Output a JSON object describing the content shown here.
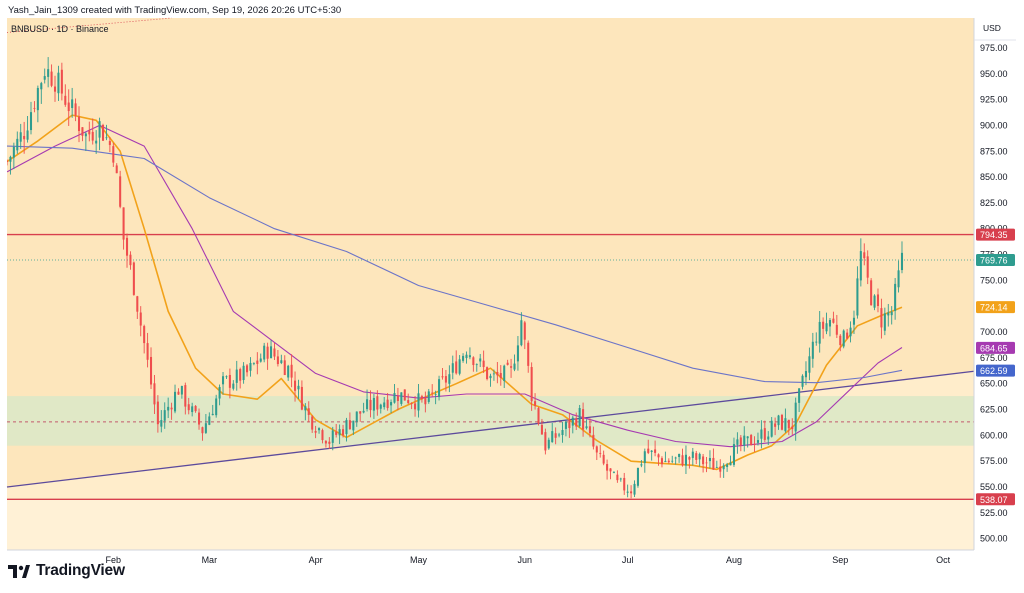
{
  "header": {
    "attribution": "Yash_Jain_1309 created with TradingView.com, Sep 19, 2026 20:26 UTC+5:30",
    "symbol": "BNBUSD · 1D · Binance",
    "currency": "USD"
  },
  "logo": {
    "text": "TradingView",
    "icon": "tradingview-logo-icon"
  },
  "colors": {
    "background_upper": "#fde6bc",
    "background_lower": "#fff1d6",
    "band": "#dde8c6",
    "up_candle": "#2e9c8f",
    "down_candle": "#ef4d4d",
    "ema_short": "#f2a21a",
    "ma_mid": "#a63ab1",
    "ma_long": "#6b74c8",
    "horizontal_line": "#d83f4d",
    "trendline": "#5c4a9c"
  },
  "chart_data": {
    "type": "candlestick",
    "x_axis": {
      "start": "2026-01-01",
      "end": "2026-10-10",
      "ticks": [
        {
          "label": "Feb",
          "date": "2026-02-01"
        },
        {
          "label": "Mar",
          "date": "2026-03-01"
        },
        {
          "label": "Apr",
          "date": "2026-04-01"
        },
        {
          "label": "May",
          "date": "2026-05-01"
        },
        {
          "label": "Jun",
          "date": "2026-06-01"
        },
        {
          "label": "Jul",
          "date": "2026-07-01"
        },
        {
          "label": "Aug",
          "date": "2026-08-01"
        },
        {
          "label": "Sep",
          "date": "2026-09-01"
        },
        {
          "label": "Oct",
          "date": "2026-10-01"
        }
      ]
    },
    "y_axis": {
      "min": 489,
      "max": 1004,
      "ticks": [
        975,
        950,
        925,
        900,
        875,
        850,
        825,
        800,
        775,
        750,
        725,
        700,
        675,
        650,
        625,
        600,
        575,
        550,
        525,
        500
      ]
    },
    "price_labels": [
      {
        "value": 794.35,
        "label": "794.35",
        "color": "#d83f4d"
      },
      {
        "value": 769.76,
        "label": "769.76",
        "color": "#2e9c8f"
      },
      {
        "value": 724.14,
        "label": "724.14",
        "color": "#f2a21a"
      },
      {
        "value": 684.65,
        "label": "684.65",
        "color": "#a63ab1"
      },
      {
        "value": 662.59,
        "label": "662.59",
        "color": "#4466cc"
      },
      {
        "value": 538.07,
        "label": "538.07",
        "color": "#d83f4d"
      }
    ],
    "horizontal_lines": [
      794.35,
      538.07
    ],
    "last_price_line": 769.76,
    "shaded_zone": {
      "top": 638,
      "bottom": 590,
      "mid": 613
    },
    "trendline": {
      "start": {
        "date": "2026-01-01",
        "price": 550
      },
      "end": {
        "date": "2026-10-10",
        "price": 662
      }
    },
    "dotted_line": {
      "start": {
        "date": "2026-01-01",
        "price": 990
      },
      "end": {
        "date": "2026-02-18",
        "price": 1004
      }
    },
    "moving_averages": [
      {
        "color": "#f2a21a",
        "points": [
          [
            "2026-01-01",
            865
          ],
          [
            "2026-01-10",
            885
          ],
          [
            "2026-01-20",
            910
          ],
          [
            "2026-01-27",
            905
          ],
          [
            "2026-02-03",
            875
          ],
          [
            "2026-02-10",
            800
          ],
          [
            "2026-02-17",
            720
          ],
          [
            "2026-02-25",
            665
          ],
          [
            "2026-03-05",
            640
          ],
          [
            "2026-03-15",
            635
          ],
          [
            "2026-03-22",
            655
          ],
          [
            "2026-04-01",
            615
          ],
          [
            "2026-04-10",
            598
          ],
          [
            "2026-04-25",
            625
          ],
          [
            "2026-05-05",
            640
          ],
          [
            "2026-05-12",
            650
          ],
          [
            "2026-05-22",
            665
          ],
          [
            "2026-06-03",
            630
          ],
          [
            "2026-06-12",
            620
          ],
          [
            "2026-06-22",
            595
          ],
          [
            "2026-07-02",
            575
          ],
          [
            "2026-07-10",
            573
          ],
          [
            "2026-07-20",
            571
          ],
          [
            "2026-07-27",
            567
          ],
          [
            "2026-08-05",
            581
          ],
          [
            "2026-08-12",
            590
          ],
          [
            "2026-08-19",
            611
          ],
          [
            "2026-08-28",
            668
          ],
          [
            "2026-09-06",
            706
          ],
          [
            "2026-09-13",
            716
          ],
          [
            "2026-09-19",
            724
          ]
        ]
      },
      {
        "color": "#a63ab1",
        "points": [
          [
            "2026-01-01",
            855
          ],
          [
            "2026-01-15",
            880
          ],
          [
            "2026-01-28",
            900
          ],
          [
            "2026-02-10",
            880
          ],
          [
            "2026-02-24",
            800
          ],
          [
            "2026-03-08",
            720
          ],
          [
            "2026-03-20",
            690
          ],
          [
            "2026-04-01",
            660
          ],
          [
            "2026-04-15",
            642
          ],
          [
            "2026-05-01",
            636
          ],
          [
            "2026-05-15",
            640
          ],
          [
            "2026-06-01",
            640
          ],
          [
            "2026-06-15",
            620
          ],
          [
            "2026-07-01",
            605
          ],
          [
            "2026-07-15",
            594
          ],
          [
            "2026-07-31",
            589
          ],
          [
            "2026-08-15",
            594
          ],
          [
            "2026-08-25",
            613
          ],
          [
            "2026-09-05",
            648
          ],
          [
            "2026-09-12",
            670
          ],
          [
            "2026-09-19",
            685
          ]
        ]
      },
      {
        "color": "#6b74c8",
        "points": [
          [
            "2026-01-01",
            880
          ],
          [
            "2026-01-20",
            878
          ],
          [
            "2026-02-10",
            868
          ],
          [
            "2026-03-01",
            830
          ],
          [
            "2026-03-20",
            800
          ],
          [
            "2026-04-10",
            778
          ],
          [
            "2026-05-01",
            745
          ],
          [
            "2026-05-20",
            727
          ],
          [
            "2026-06-10",
            707
          ],
          [
            "2026-07-01",
            685
          ],
          [
            "2026-07-20",
            665
          ],
          [
            "2026-08-10",
            652
          ],
          [
            "2026-08-25",
            651
          ],
          [
            "2026-09-08",
            656
          ],
          [
            "2026-09-19",
            663
          ]
        ]
      }
    ],
    "candles_anchors": [
      [
        "2026-01-01",
        865
      ],
      [
        "2026-01-06",
        895
      ],
      [
        "2026-01-12",
        955
      ],
      [
        "2026-01-15",
        945
      ],
      [
        "2026-01-19",
        920
      ],
      [
        "2026-01-24",
        890
      ],
      [
        "2026-01-28",
        900
      ],
      [
        "2026-02-01",
        875
      ],
      [
        "2026-02-04",
        790
      ],
      [
        "2026-02-07",
        745
      ],
      [
        "2026-02-11",
        670
      ],
      [
        "2026-02-14",
        610
      ],
      [
        "2026-02-20",
        645
      ],
      [
        "2026-02-27",
        605
      ],
      [
        "2026-03-05",
        650
      ],
      [
        "2026-03-12",
        660
      ],
      [
        "2026-03-18",
        683
      ],
      [
        "2026-03-24",
        665
      ],
      [
        "2026-03-30",
        618
      ],
      [
        "2026-04-05",
        595
      ],
      [
        "2026-04-15",
        625
      ],
      [
        "2026-04-25",
        640
      ],
      [
        "2026-05-03",
        630
      ],
      [
        "2026-05-10",
        658
      ],
      [
        "2026-05-15",
        685
      ],
      [
        "2026-05-22",
        655
      ],
      [
        "2026-05-28",
        660
      ],
      [
        "2026-05-31",
        712
      ],
      [
        "2026-06-03",
        640
      ],
      [
        "2026-06-07",
        590
      ],
      [
        "2026-06-12",
        605
      ],
      [
        "2026-06-17",
        620
      ],
      [
        "2026-06-22",
        580
      ],
      [
        "2026-06-28",
        552
      ],
      [
        "2026-07-02",
        548
      ],
      [
        "2026-07-06",
        585
      ],
      [
        "2026-07-12",
        575
      ],
      [
        "2026-07-20",
        578
      ],
      [
        "2026-07-27",
        570
      ],
      [
        "2026-08-02",
        588
      ],
      [
        "2026-08-08",
        598
      ],
      [
        "2026-08-14",
        612
      ],
      [
        "2026-08-18",
        610
      ],
      [
        "2026-08-21",
        650
      ],
      [
        "2026-08-25",
        698
      ],
      [
        "2026-08-29",
        712
      ],
      [
        "2026-09-02",
        692
      ],
      [
        "2026-09-05",
        720
      ],
      [
        "2026-09-07",
        775
      ],
      [
        "2026-09-10",
        735
      ],
      [
        "2026-09-13",
        712
      ],
      [
        "2026-09-16",
        720
      ],
      [
        "2026-09-19",
        770
      ]
    ]
  }
}
